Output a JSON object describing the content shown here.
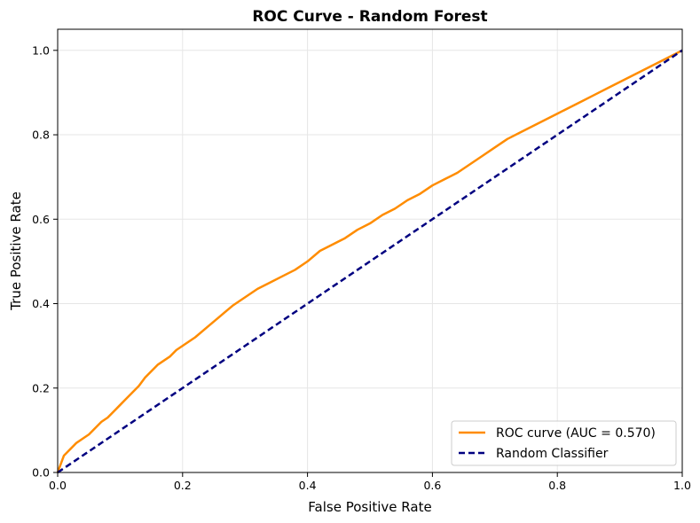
{
  "chart_data": {
    "type": "line",
    "title": "ROC Curve - Random Forest",
    "xlabel": "False Positive Rate",
    "ylabel": "True Positive Rate",
    "xlim": [
      0.0,
      1.0
    ],
    "ylim": [
      0.0,
      1.05
    ],
    "xticks": [
      "0.0",
      "0.2",
      "0.4",
      "0.6",
      "0.8",
      "1.0"
    ],
    "yticks": [
      "0.0",
      "0.2",
      "0.4",
      "0.6",
      "0.8",
      "1.0"
    ],
    "grid": true,
    "legend_position": "bottom-right",
    "series": [
      {
        "name": "ROC curve (AUC = 0.570)",
        "color": "#ff8c00",
        "style": "solid",
        "x": [
          0.0,
          0.005,
          0.01,
          0.02,
          0.03,
          0.04,
          0.05,
          0.06,
          0.07,
          0.08,
          0.09,
          0.1,
          0.11,
          0.12,
          0.13,
          0.14,
          0.15,
          0.16,
          0.17,
          0.18,
          0.19,
          0.2,
          0.22,
          0.24,
          0.26,
          0.28,
          0.3,
          0.32,
          0.34,
          0.36,
          0.38,
          0.4,
          0.42,
          0.44,
          0.46,
          0.48,
          0.5,
          0.52,
          0.54,
          0.56,
          0.58,
          0.6,
          0.62,
          0.64,
          0.66,
          0.68,
          0.7,
          0.72,
          0.74,
          0.76,
          0.78,
          0.8,
          0.82,
          0.84,
          0.86,
          0.88,
          0.9,
          0.92,
          0.94,
          0.96,
          0.98,
          1.0
        ],
        "y": [
          0.0,
          0.02,
          0.04,
          0.055,
          0.07,
          0.08,
          0.09,
          0.105,
          0.12,
          0.13,
          0.145,
          0.16,
          0.175,
          0.19,
          0.205,
          0.225,
          0.24,
          0.255,
          0.265,
          0.275,
          0.29,
          0.3,
          0.32,
          0.345,
          0.37,
          0.395,
          0.415,
          0.435,
          0.45,
          0.465,
          0.48,
          0.5,
          0.525,
          0.54,
          0.555,
          0.575,
          0.59,
          0.61,
          0.625,
          0.645,
          0.66,
          0.68,
          0.695,
          0.71,
          0.73,
          0.75,
          0.77,
          0.79,
          0.805,
          0.82,
          0.835,
          0.85,
          0.865,
          0.88,
          0.895,
          0.91,
          0.925,
          0.94,
          0.955,
          0.97,
          0.985,
          1.0
        ]
      },
      {
        "name": "Random Classifier",
        "color": "#000080",
        "style": "dashed",
        "x": [
          0.0,
          1.0
        ],
        "y": [
          0.0,
          1.0
        ]
      }
    ]
  }
}
